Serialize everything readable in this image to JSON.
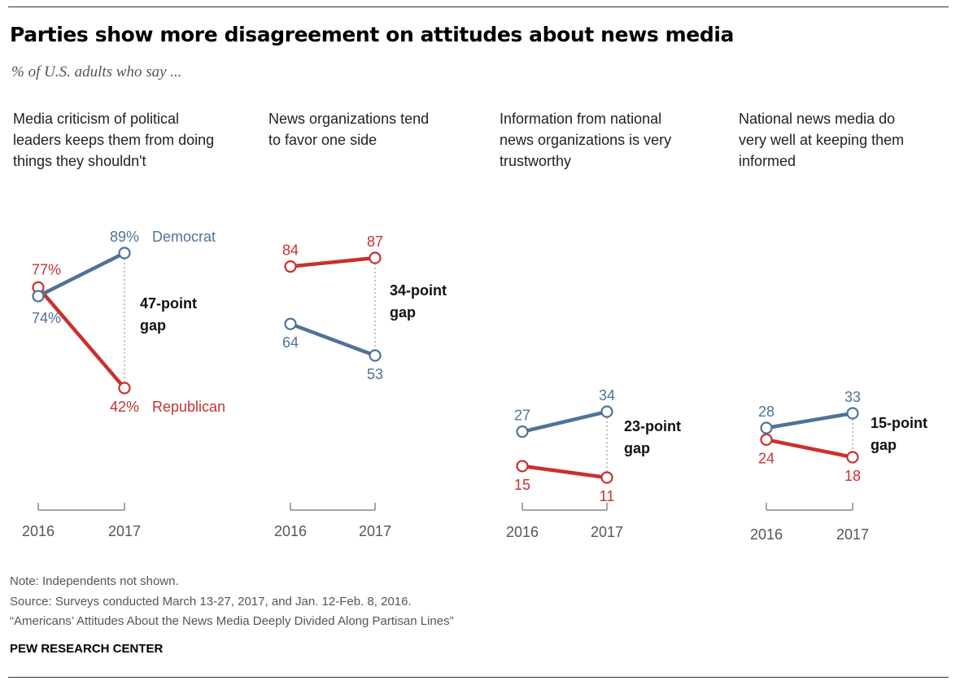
{
  "title": "Parties show more disagreement on attitudes about news media",
  "subtitle": "% of U.S. adults who say ...",
  "colors": {
    "democrat": "#4F7298",
    "republican": "#C8312F",
    "axis": "#888888"
  },
  "footer": {
    "note": "Note: Independents not shown.",
    "source": "Source: Surveys conducted March 13-27, 2017, and Jan. 12-Feb. 8, 2016.",
    "report": "“Americans’ Attitudes About the News Media Deeply Divided Along Partisan Lines”",
    "org": "PEW RESEARCH CENTER"
  },
  "chart_data": [
    {
      "type": "line",
      "title": "Media criticism of political leaders keeps them from doing things they shouldn't",
      "categories": [
        "2016",
        "2017"
      ],
      "series": [
        {
          "name": "Democrat",
          "values": [
            74,
            89
          ],
          "labels": [
            "74%",
            "89%"
          ]
        },
        {
          "name": "Republican",
          "values": [
            77,
            42
          ],
          "labels": [
            "77%",
            "42%"
          ]
        }
      ],
      "annotation": "47-point gap"
    },
    {
      "type": "line",
      "title": "News organizations tend to favor one side",
      "categories": [
        "2016",
        "2017"
      ],
      "series": [
        {
          "name": "Democrat",
          "values": [
            64,
            53
          ],
          "labels": [
            "64",
            "53"
          ]
        },
        {
          "name": "Republican",
          "values": [
            84,
            87
          ],
          "labels": [
            "84",
            "87"
          ]
        }
      ],
      "annotation": "34-point gap"
    },
    {
      "type": "line",
      "title": "Information from national news organizations is very trustworthy",
      "categories": [
        "2016",
        "2017"
      ],
      "series": [
        {
          "name": "Democrat",
          "values": [
            27,
            34
          ],
          "labels": [
            "27",
            "34"
          ]
        },
        {
          "name": "Republican",
          "values": [
            15,
            11
          ],
          "labels": [
            "15",
            "11"
          ]
        }
      ],
      "annotation": "23-point gap"
    },
    {
      "type": "line",
      "title": "National news media do very well at keeping them informed",
      "categories": [
        "2016",
        "2017"
      ],
      "series": [
        {
          "name": "Democrat",
          "values": [
            28,
            33
          ],
          "labels": [
            "28",
            "33"
          ]
        },
        {
          "name": "Republican",
          "values": [
            24,
            18
          ],
          "labels": [
            "24",
            "18"
          ]
        }
      ],
      "annotation": "15-point gap"
    }
  ]
}
